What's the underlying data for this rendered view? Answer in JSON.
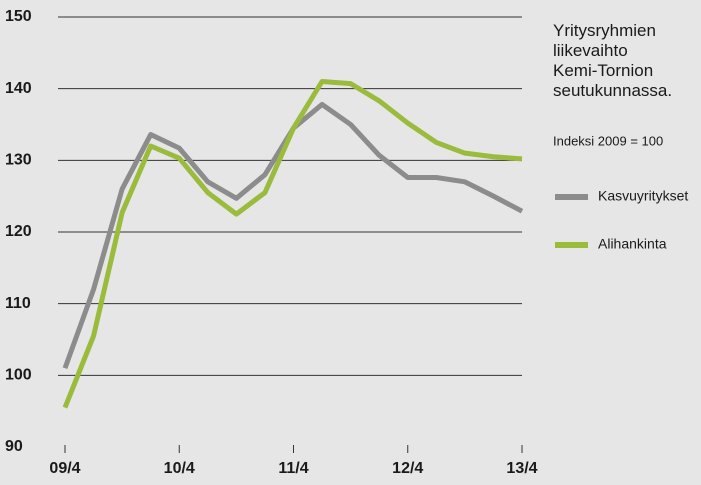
{
  "chart_data": {
    "type": "line",
    "title": "Yritysryhmien liikevaihto Kemi-Tornion seutukunnassa.",
    "subtitle": "Indeksi 2009 = 100",
    "categories": [
      "09/4",
      null,
      null,
      null,
      "10/4",
      null,
      null,
      null,
      "11/4",
      null,
      null,
      null,
      "12/4",
      null,
      null,
      null,
      "13/4"
    ],
    "series": [
      {
        "name": "Kasvuyritykset",
        "color": "#8c8c8c",
        "values": [
          101,
          112,
          126,
          133.6,
          131.7,
          127,
          124.7,
          128,
          134.5,
          137.8,
          135,
          130.7,
          127.6,
          127.6,
          127,
          125,
          122.9
        ]
      },
      {
        "name": "Alihankinta",
        "color": "#9bbb3c",
        "values": [
          95.5,
          105.5,
          122.7,
          132,
          130.3,
          125.5,
          122.5,
          125.5,
          134.5,
          141,
          140.7,
          138.3,
          135.2,
          132.5,
          131,
          130.5,
          130.2
        ]
      }
    ],
    "ylim": [
      90,
      150
    ],
    "yticks": [
      90,
      100,
      110,
      120,
      130,
      140,
      150
    ],
    "grid": true
  }
}
